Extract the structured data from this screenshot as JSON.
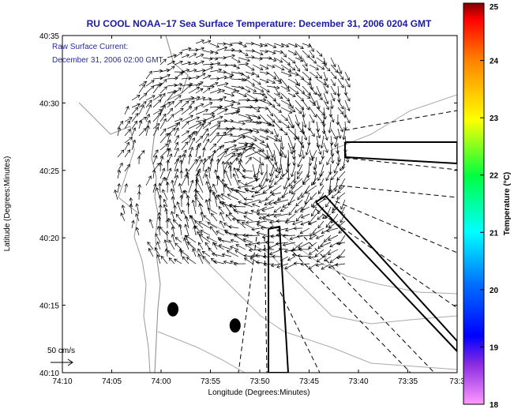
{
  "chart_data": {
    "type": "scatter",
    "title": "RU COOL  NOAA−17  Sea Surface Temperature:  December 31, 2006 0204 GMT",
    "xlabel": "Longitude (Degrees:Minutes)",
    "ylabel": "Latitude (Degrees:Minutes)",
    "xlim": [
      -74.1667,
      -73.5
    ],
    "ylim": [
      40.1667,
      40.5833
    ],
    "x_ticks": [
      "74:10",
      "74:05",
      "74:00",
      "73:55",
      "73:50",
      "73:45",
      "73:40",
      "73:35",
      "73:3"
    ],
    "y_ticks": [
      "40:35",
      "40:30",
      "40:25",
      "40:20",
      "40:15",
      "40:10"
    ],
    "annotations": {
      "current_label_line1": "Raw Surface Current:",
      "current_label_line2": "December 31, 2006 02:00 GMT",
      "scale_label": "50 cm/s"
    },
    "colorbar": {
      "label": "Temperature (°C)",
      "ticks": [
        "25",
        "24",
        "23",
        "22",
        "21",
        "20",
        "19",
        "18"
      ],
      "range": [
        18,
        25
      ]
    },
    "current_field": {
      "center": [
        -73.85,
        40.42
      ],
      "scale_cm_s": 50
    },
    "markers": [
      {
        "lon": -73.98,
        "lat": 40.245
      },
      {
        "lon": -73.875,
        "lat": 40.225
      }
    ]
  }
}
